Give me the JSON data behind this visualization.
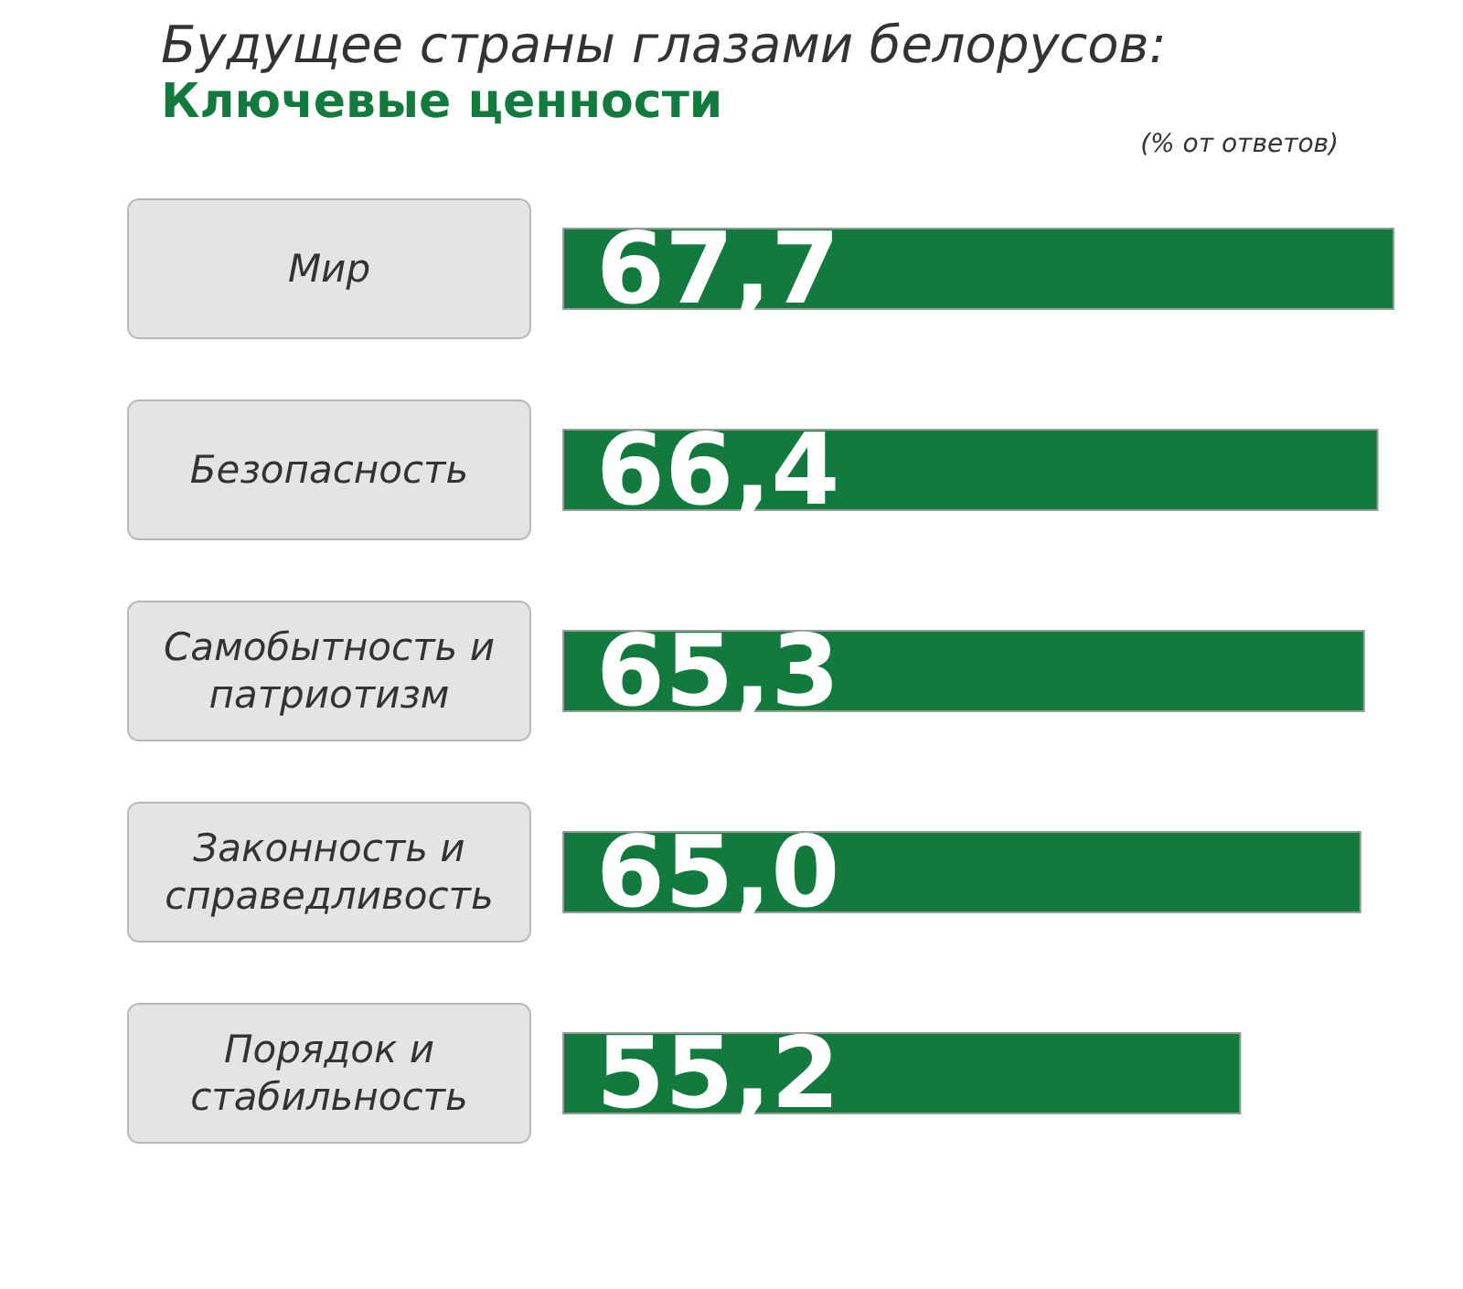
{
  "chart_data": {
    "type": "bar",
    "orientation": "horizontal",
    "title": "Будущее страны глазами белорусов:",
    "subtitle": "Ключевые ценности",
    "annotations": [
      "(% от ответов)"
    ],
    "categories": [
      "Мир",
      "Безопасность",
      "Самобытность и патриотизм",
      "Законность и справедливость",
      "Порядок и стабильность"
    ],
    "values": [
      67.7,
      66.4,
      65.3,
      65.0,
      55.2
    ],
    "value_labels": [
      "67,7",
      "66,4",
      "65,3",
      "65,0",
      "55,2"
    ],
    "color": "#137a3e"
  }
}
